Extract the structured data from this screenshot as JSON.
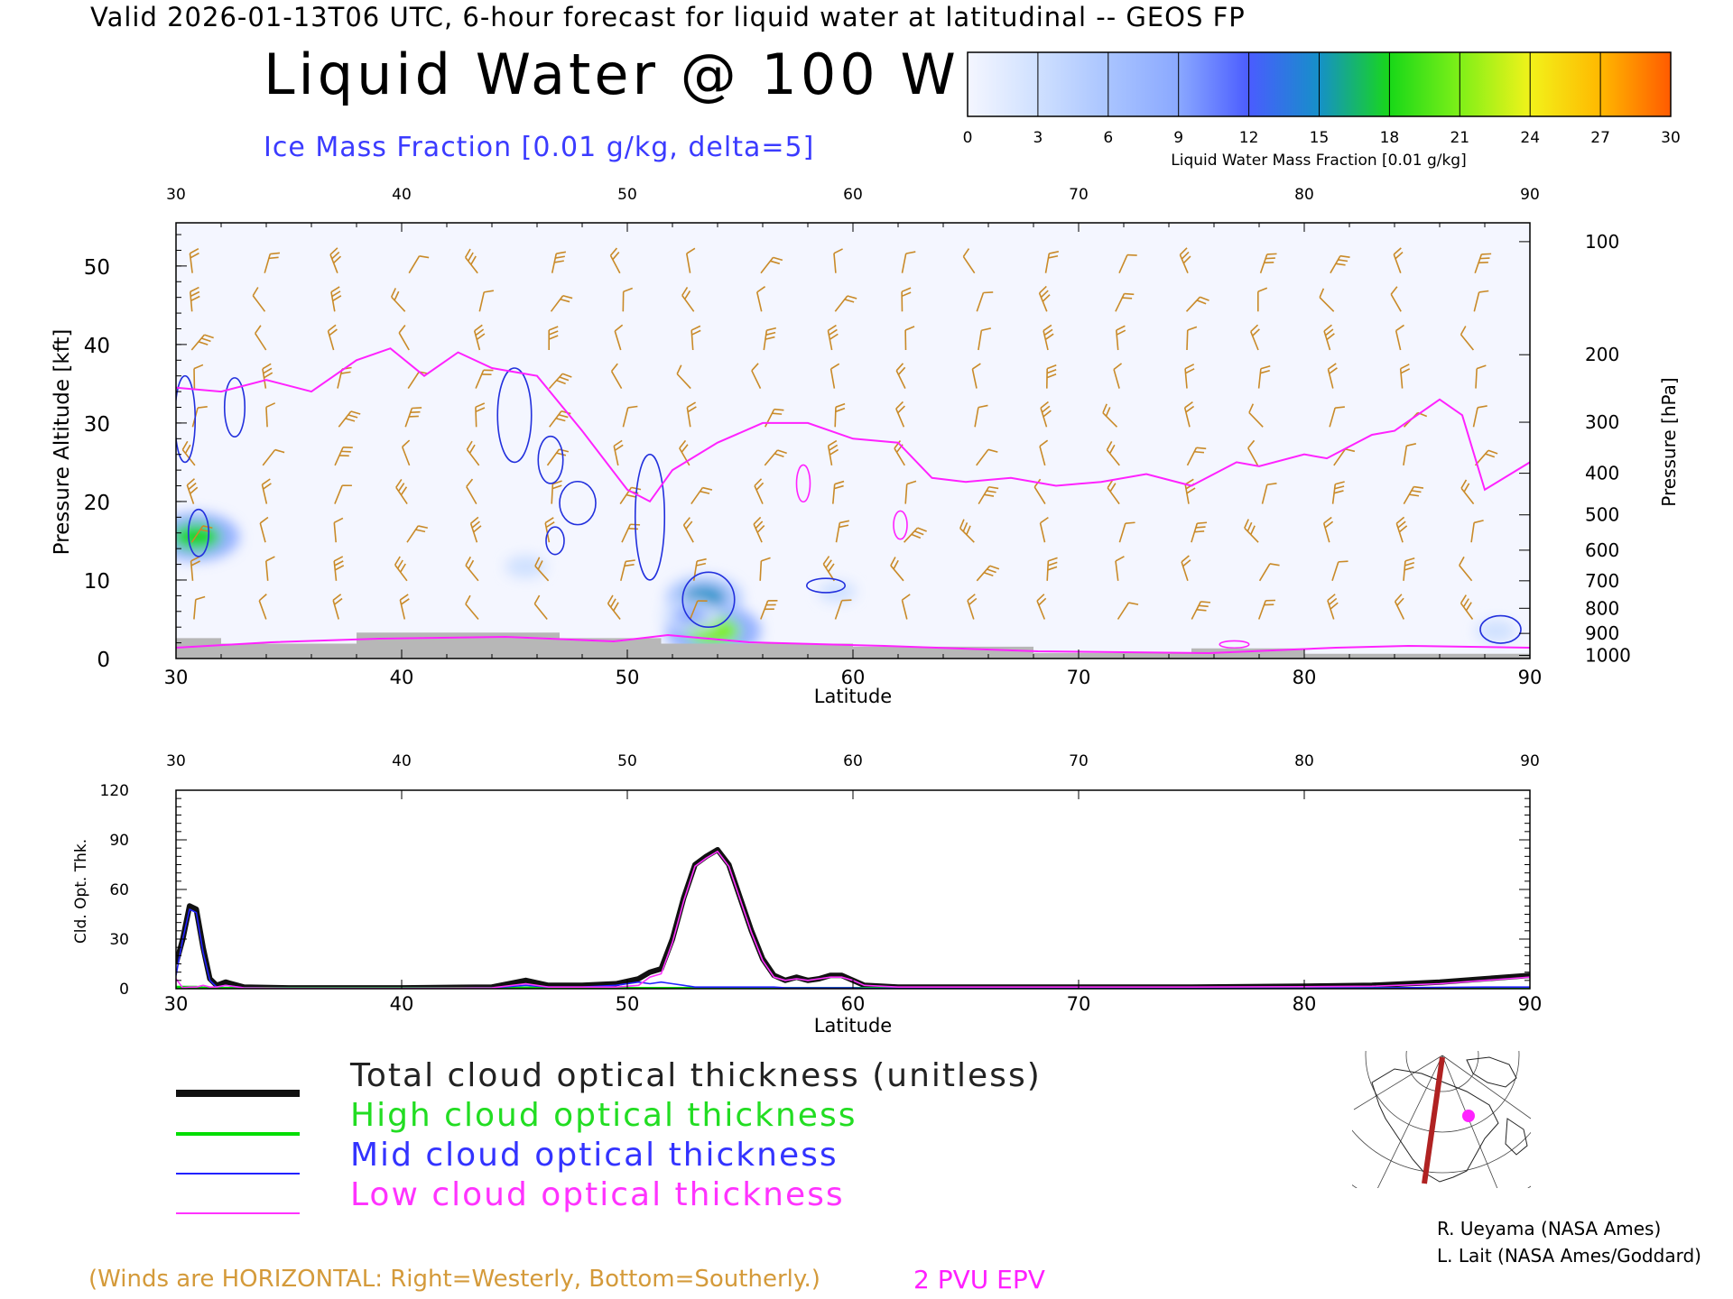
{
  "header": {
    "valid_line": "Valid 2026-01-13T06 UTC, 6-hour forecast for liquid water at latitudinal -- GEOS FP",
    "title": "Liquid Water @ 100 W",
    "subtitle": "Ice Mass Fraction [0.01 g/kg, delta=5]"
  },
  "colorbar": {
    "ticks": [
      "0",
      "3",
      "6",
      "9",
      "12",
      "15",
      "18",
      "21",
      "24",
      "27",
      "30"
    ],
    "label": "Liquid Water Mass Fraction [0.01 g/kg]",
    "colors": [
      "#f4f6ff",
      "#cfe0ff",
      "#a9c4ff",
      "#8aa8ff",
      "#4a5cff",
      "#1590c8",
      "#18d818",
      "#7ff018",
      "#f2f21a",
      "#ffb800",
      "#ff5a00"
    ]
  },
  "colors": {
    "wind_barbs": "#c98a28",
    "ice_contour": "#2230dd",
    "tropopause_epv": "#ff22ff",
    "terrain": "#b7b7b7",
    "field_background": "#f4f6ff"
  },
  "chart_data": [
    {
      "type": "heatmap",
      "xlabel": "Latitude",
      "ylabel_left": "Pressure Altitude [kft]",
      "ylabel_right": "Pressure [hPa]",
      "x_ticks": [
        "30",
        "40",
        "50",
        "60",
        "70",
        "80",
        "90"
      ],
      "y_ticks": [
        "0",
        "10",
        "20",
        "30",
        "40",
        "50"
      ],
      "pressure_ticks": [
        "100",
        "200",
        "300",
        "400",
        "500",
        "600",
        "700",
        "800",
        "900",
        "1000"
      ],
      "pressure_tick_kft": [
        53.1,
        38.7,
        30.1,
        23.6,
        18.3,
        13.8,
        9.9,
        6.4,
        3.2,
        0.4
      ],
      "xlim": [
        30,
        90
      ],
      "ylim": [
        0,
        55.5
      ],
      "epv_2pvu_kft": [
        [
          30,
          34.5
        ],
        [
          32,
          34
        ],
        [
          34,
          35.5
        ],
        [
          36,
          34
        ],
        [
          38,
          38
        ],
        [
          39.5,
          39.5
        ],
        [
          41,
          36
        ],
        [
          42.5,
          39
        ],
        [
          44,
          37
        ],
        [
          46,
          36
        ],
        [
          48,
          29
        ],
        [
          50,
          21.5
        ],
        [
          51,
          20
        ],
        [
          52,
          24
        ],
        [
          54,
          27.5
        ],
        [
          56,
          30
        ],
        [
          58,
          30
        ],
        [
          60,
          28
        ],
        [
          62,
          27.5
        ],
        [
          63.5,
          23
        ],
        [
          65,
          22.5
        ],
        [
          67,
          23
        ],
        [
          69,
          22
        ],
        [
          71,
          22.5
        ],
        [
          73,
          23.5
        ],
        [
          75,
          22
        ],
        [
          77,
          25
        ],
        [
          78,
          24.5
        ],
        [
          80,
          26
        ],
        [
          81,
          25.5
        ],
        [
          82,
          27
        ],
        [
          83,
          28.5
        ],
        [
          84,
          29
        ],
        [
          86,
          33
        ],
        [
          87,
          31
        ],
        [
          88,
          21.5
        ],
        [
          90,
          25
        ]
      ],
      "liquid_blobs": [
        {
          "lat": 30.9,
          "kft": 15.5,
          "value": 18
        },
        {
          "lat": 53.8,
          "kft": 3.5,
          "value": 21
        },
        {
          "lat": 53.4,
          "kft": 7.8,
          "value": 15
        },
        {
          "lat": 52.8,
          "kft": 5.5,
          "value": 9
        },
        {
          "lat": 45.5,
          "kft": 11.7,
          "value": 4
        },
        {
          "lat": 59.3,
          "kft": 8.5,
          "value": 3
        },
        {
          "lat": 88.5,
          "kft": 3.5,
          "value": 4
        }
      ],
      "ice_contours": [
        {
          "lat": 32.6,
          "kft": 32.0,
          "w": 0.9,
          "h": 7.5
        },
        {
          "lat": 45.0,
          "kft": 31.0,
          "w": 1.5,
          "h": 12.0
        },
        {
          "lat": 46.6,
          "kft": 25.3,
          "w": 1.1,
          "h": 6.0
        },
        {
          "lat": 47.8,
          "kft": 19.8,
          "w": 1.6,
          "h": 5.5
        },
        {
          "lat": 46.8,
          "kft": 15.0,
          "w": 0.8,
          "h": 3.5
        },
        {
          "lat": 51.0,
          "kft": 18.0,
          "w": 1.3,
          "h": 16.0
        },
        {
          "lat": 31.0,
          "kft": 16.0,
          "w": 0.9,
          "h": 6.0
        },
        {
          "lat": 53.6,
          "kft": 7.5,
          "w": 2.3,
          "h": 7.0
        },
        {
          "lat": 58.8,
          "kft": 9.3,
          "w": 1.7,
          "h": 1.8
        },
        {
          "lat": 30.4,
          "kft": 30.5,
          "w": 0.9,
          "h": 11.0
        },
        {
          "lat": 88.7,
          "kft": 3.7,
          "w": 1.8,
          "h": 3.5
        }
      ],
      "epv_closed": [
        {
          "lat": 57.8,
          "kft": 22.3,
          "w": 0.6,
          "h": 4.7
        },
        {
          "lat": 62.1,
          "kft": 17.0,
          "w": 0.6,
          "h": 3.6
        },
        {
          "lat": 76.9,
          "kft": 1.8,
          "w": 1.3,
          "h": 0.9
        }
      ],
      "terrain_kft": [
        [
          30,
          2.6
        ],
        [
          32,
          2.6
        ],
        [
          32,
          1.9
        ],
        [
          38,
          1.9
        ],
        [
          38,
          3.3
        ],
        [
          47,
          3.3
        ],
        [
          47,
          2.6
        ],
        [
          51.5,
          2.6
        ],
        [
          51.5,
          1.9
        ],
        [
          60,
          1.9
        ],
        [
          60,
          1.5
        ],
        [
          68,
          1.5
        ],
        [
          68,
          0.7
        ],
        [
          75,
          0.7
        ],
        [
          75,
          1.3
        ],
        [
          80,
          1.3
        ],
        [
          80,
          0.6
        ],
        [
          90,
          0.6
        ]
      ]
    },
    {
      "type": "line",
      "xlabel": "Latitude",
      "ylabel": "Cld. Opt. Thk.",
      "x_ticks": [
        "30",
        "40",
        "50",
        "60",
        "70",
        "80",
        "90"
      ],
      "y_ticks": [
        "0",
        "30",
        "60",
        "90",
        "120"
      ],
      "xlim": [
        30,
        90
      ],
      "ylim": [
        0,
        120
      ],
      "x": [
        30,
        30.3,
        30.6,
        30.9,
        31.2,
        31.5,
        31.8,
        32.2,
        33,
        35,
        40,
        44,
        45.5,
        46.5,
        48,
        49.5,
        50.5,
        51,
        51.5,
        52,
        52.5,
        53,
        53.5,
        54,
        54.5,
        55,
        55.5,
        56,
        56.5,
        57,
        57.5,
        58,
        58.5,
        59,
        59.5,
        60,
        60.5,
        62,
        65,
        70,
        75,
        80,
        83,
        86,
        88,
        90
      ],
      "series": [
        {
          "name": "Total cloud optical thickness (unitless)",
          "color": "#111111",
          "values": [
            15,
            30,
            50,
            48,
            25,
            6,
            2,
            4,
            1,
            0.5,
            0.5,
            1,
            5,
            2,
            2,
            3,
            6,
            10,
            12,
            30,
            55,
            75,
            80,
            84,
            75,
            55,
            35,
            18,
            8,
            5,
            7,
            5,
            6,
            8,
            8,
            5,
            2,
            1,
            1,
            1,
            1,
            1.5,
            2,
            4,
            6,
            8
          ]
        },
        {
          "name": "High cloud optical thickness",
          "color": "#00dd00",
          "values": [
            1,
            1,
            1,
            1,
            0.5,
            0.5,
            0.3,
            0.3,
            0.3,
            0.3,
            0.3,
            0.3,
            0.5,
            0.5,
            0.3,
            0.3,
            0.3,
            0.3,
            0.3,
            0.3,
            0.3,
            0.3,
            0.3,
            0.3,
            0.3,
            0.3,
            0.3,
            0.3,
            0.3,
            0.3,
            0.3,
            0.3,
            0.3,
            0.3,
            0.3,
            0.3,
            0.3,
            0.3,
            0.3,
            0.3,
            0.3,
            0.3,
            0.3,
            0.3,
            0.3,
            0.3
          ]
        },
        {
          "name": "Mid cloud optical thickness",
          "color": "#2222ff",
          "values": [
            8,
            30,
            48,
            46,
            22,
            5,
            1,
            2,
            0.5,
            0.3,
            0.3,
            0.5,
            2,
            1,
            1,
            2,
            4,
            3,
            4,
            3,
            2,
            1,
            1,
            1,
            1,
            1,
            1,
            1,
            1,
            0.5,
            0.5,
            0.5,
            0.5,
            0.5,
            0.5,
            0.5,
            0.3,
            0.3,
            0.3,
            0.3,
            0.3,
            0.3,
            0.5,
            0.8,
            1,
            1
          ]
        },
        {
          "name": "Low cloud optical thickness",
          "color": "#ff33ff",
          "values": [
            6,
            0.5,
            1,
            1,
            2,
            1,
            1,
            2,
            0.5,
            0.3,
            0.3,
            0.5,
            3,
            1,
            1,
            1,
            2,
            7,
            9,
            28,
            53,
            74,
            79,
            83,
            74,
            54,
            34,
            17,
            7,
            5,
            6,
            5,
            6,
            7,
            7,
            5,
            2,
            1,
            1,
            1,
            1,
            1.2,
            1.5,
            3,
            5,
            7
          ]
        }
      ]
    }
  ],
  "credits": {
    "line1": "R. Ueyama (NASA Ames)",
    "line2": "L. Lait (NASA Ames/Goddard)"
  },
  "notes": {
    "winds": "(Winds are HORIZONTAL: Right=Westerly, Bottom=Southerly.)",
    "pvu": "2 PVU EPV"
  },
  "legend": {
    "total": "Total cloud optical thickness (unitless)",
    "high": "High cloud optical thickness",
    "mid": "Mid cloud optical thickness",
    "low": "Low cloud optical thickness"
  }
}
